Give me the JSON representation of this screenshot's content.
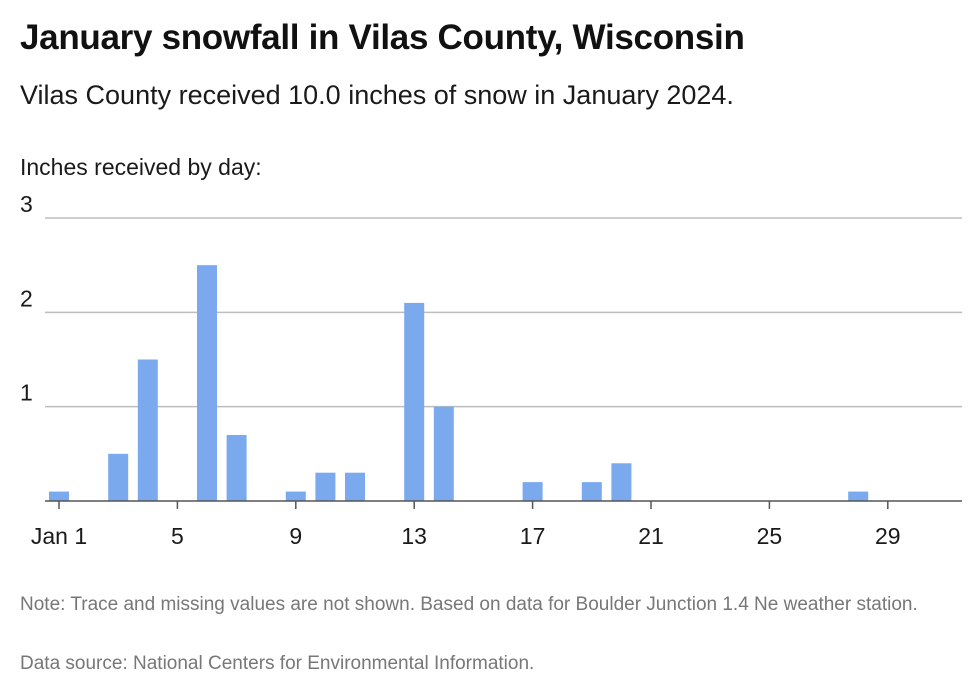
{
  "header": {
    "title": "January snowfall in Vilas County, Wisconsin",
    "subtitle": "Vilas County received 10.0 inches of snow in January 2024."
  },
  "footer": {
    "note": "Note: Trace and missing values are not shown. Based on data for Boulder Junction 1.4 Ne weather station.",
    "source": "Data source: National Centers for Environmental Information."
  },
  "chart_data": {
    "type": "bar",
    "title": "January snowfall in Vilas County, Wisconsin",
    "subtitle": "Vilas County received 10.0 inches of snow in January 2024.",
    "ylabel": "Inches received by day:",
    "xlabel": "",
    "ylim": [
      0,
      3
    ],
    "y_ticks": [
      "1",
      "2",
      "3"
    ],
    "grid": true,
    "bar_color": "#7aa9ee",
    "gridline_color": "#bdbdbd",
    "x_ticks": [
      {
        "day": 1,
        "label": "Jan 1"
      },
      {
        "day": 5,
        "label": "5"
      },
      {
        "day": 9,
        "label": "9"
      },
      {
        "day": 13,
        "label": "13"
      },
      {
        "day": 17,
        "label": "17"
      },
      {
        "day": 21,
        "label": "21"
      },
      {
        "day": 25,
        "label": "25"
      },
      {
        "day": 29,
        "label": "29"
      }
    ],
    "categories": [
      1,
      2,
      3,
      4,
      5,
      6,
      7,
      8,
      9,
      10,
      11,
      12,
      13,
      14,
      15,
      16,
      17,
      18,
      19,
      20,
      21,
      22,
      23,
      24,
      25,
      26,
      27,
      28,
      29,
      30,
      31
    ],
    "values": [
      0.1,
      0,
      0.5,
      1.5,
      0,
      2.5,
      0.7,
      0,
      0.1,
      0.3,
      0.3,
      0,
      2.1,
      1.0,
      0,
      0,
      0.2,
      0,
      0.2,
      0.4,
      0,
      0,
      0,
      0,
      0,
      0,
      0,
      0.1,
      0,
      0,
      0
    ]
  }
}
